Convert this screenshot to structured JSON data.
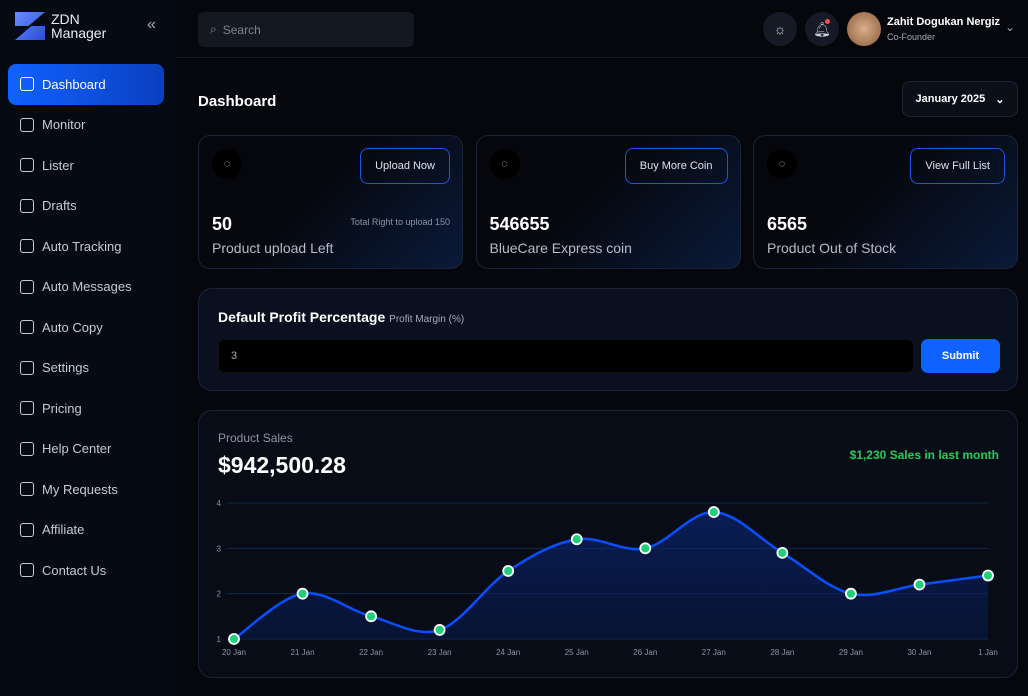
{
  "brand": {
    "line1": "ZDN",
    "line2": "Manager"
  },
  "sidebar": {
    "items": [
      {
        "label": "Dashboard",
        "icon": "grid-icon",
        "active": true
      },
      {
        "label": "Monitor",
        "icon": "monitor-icon"
      },
      {
        "label": "Lister",
        "icon": "list-icon"
      },
      {
        "label": "Drafts",
        "icon": "drafts-icon"
      },
      {
        "label": "Auto Tracking",
        "icon": "tracking-icon"
      },
      {
        "label": "Auto Messages",
        "icon": "mail-icon"
      },
      {
        "label": "Auto Copy",
        "icon": "copy-icon"
      },
      {
        "label": "Settings",
        "icon": "gear-icon"
      },
      {
        "label": "Pricing",
        "icon": "money-bag-icon"
      },
      {
        "label": "Help Center",
        "icon": "lifebuoy-icon"
      },
      {
        "label": "My Requests",
        "icon": "requests-icon"
      },
      {
        "label": "Affiliate",
        "icon": "affiliate-icon"
      },
      {
        "label": "Contact Us",
        "icon": "contact-icon"
      }
    ]
  },
  "header": {
    "search_placeholder": "Search",
    "user": {
      "name": "Zahit Dogukan Nergiz",
      "role": "Co-Founder"
    }
  },
  "main": {
    "title": "Dashboard",
    "month": "January 2025",
    "cards": [
      {
        "value": "50",
        "label": "Product upload Left",
        "button": "Upload Now",
        "note": "Total Right to upload 150",
        "icon": "cloud-upload-icon"
      },
      {
        "value": "546655",
        "label": "BlueCare Express coin",
        "button": "Buy More Coin",
        "icon": "coins-icon"
      },
      {
        "value": "6565",
        "label": "Product Out of Stock",
        "button": "View Full List",
        "icon": "bag-icon"
      }
    ],
    "profit": {
      "title": "Default Profit Percentage",
      "subtitle": "Profit Margin (%)",
      "value": "3",
      "submit": "Submit"
    },
    "sales": {
      "label": "Product Sales",
      "total": "$942,500.28",
      "badge": "$1,230 Sales in last month"
    }
  },
  "chart_data": {
    "type": "area",
    "categories": [
      "20 Jan",
      "21 Jan",
      "22 Jan",
      "23 Jan",
      "24 Jan",
      "25 Jan",
      "26 Jan",
      "27 Jan",
      "28 Jan",
      "29 Jan",
      "30 Jan",
      "1 Jan"
    ],
    "values": [
      1,
      2,
      1.5,
      1.2,
      2.5,
      3.2,
      3,
      3.8,
      2.9,
      2,
      2.2,
      2.4
    ],
    "ylim": [
      1,
      4
    ],
    "yticks": [
      "1",
      "2",
      "3",
      "4"
    ],
    "grid": true,
    "line_color": "#0a4fff",
    "marker_color": "#1fcf7a"
  }
}
